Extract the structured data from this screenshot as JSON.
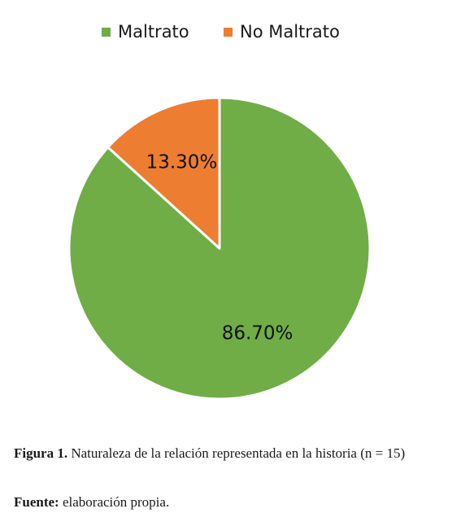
{
  "chart_data": {
    "type": "pie",
    "categories": [
      "Maltrato",
      "No Maltrato"
    ],
    "values": [
      86.7,
      13.3
    ],
    "data_labels": [
      "86.70%",
      "13.30%"
    ],
    "colors": [
      "#70ad47",
      "#ed7d31"
    ],
    "legend_position": "top",
    "start_angle": "12 o'clock, clockwise"
  },
  "caption": {
    "figure_label": "Figura 1.",
    "figure_text": "Naturaleza de la relación representada en la historia (n = 15)",
    "source_label": "Fuente:",
    "source_text": "elaboración propia."
  }
}
